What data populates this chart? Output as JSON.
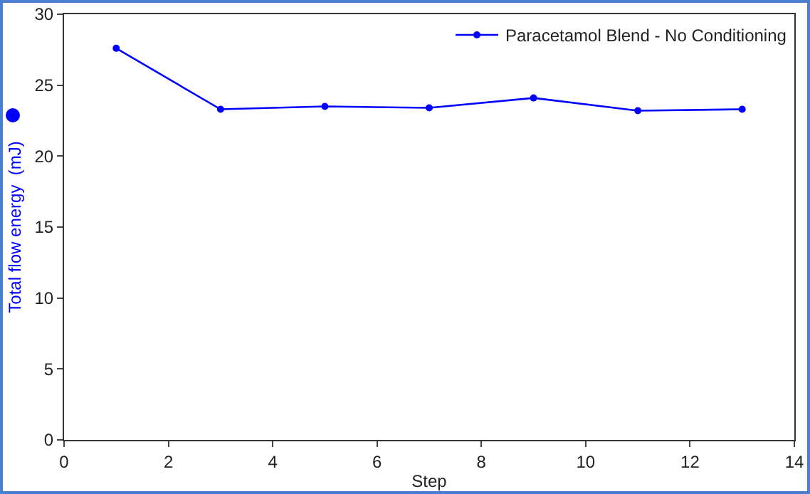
{
  "chart_data": {
    "type": "line",
    "xlabel": "Step",
    "ylabel": "Total flow energy  (mJ)",
    "x": [
      1,
      3,
      5,
      7,
      9,
      11,
      13
    ],
    "series": [
      {
        "name": "Paracetamol Blend - No Conditioning",
        "color": "#0000ff",
        "values": [
          27.6,
          23.3,
          23.5,
          23.4,
          24.1,
          23.2,
          23.3
        ]
      }
    ],
    "xlim": [
      0,
      14
    ],
    "xticks": [
      0,
      2,
      4,
      6,
      8,
      10,
      12,
      14
    ],
    "ylim": [
      0,
      30
    ],
    "yticks": [
      0,
      5,
      10,
      15,
      20,
      25,
      30
    ],
    "grid": false,
    "legend": "top right",
    "marker": "circle",
    "line_style": "solid"
  }
}
